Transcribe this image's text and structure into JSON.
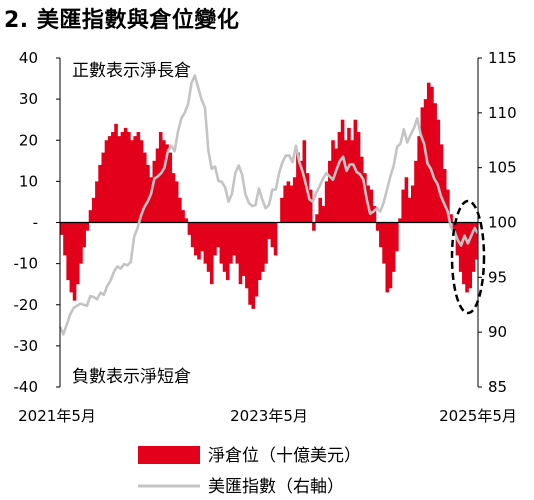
{
  "title": "2. 美匯指數與倉位變化",
  "chart_data": {
    "type": "bar+line",
    "left_axis": {
      "min": -40,
      "max": 40,
      "ticks": [
        "40",
        "30",
        "20",
        "10",
        "-",
        "-10",
        "-20",
        "-30",
        "-40"
      ]
    },
    "right_axis": {
      "min": 85,
      "max": 115,
      "ticks": [
        "115",
        "110",
        "105",
        "100",
        "95",
        "90",
        "85"
      ]
    },
    "x_ticks": [
      "2021年5月",
      "2023年5月",
      "2025年5月"
    ],
    "annotations": {
      "top": "正數表示淨長倉",
      "bottom": "負數表示淨短倉"
    },
    "legend": [
      {
        "label": "淨倉位（十億美元）",
        "color": "#e3001b",
        "kind": "bar"
      },
      {
        "label": "美匯指數（右軸）",
        "color": "#c4c4c4",
        "kind": "line"
      }
    ],
    "series": [
      {
        "name": "淨倉位（十億美元）",
        "axis": "left",
        "x_range": [
          "2021-05",
          "2025-05"
        ],
        "values": [
          -3,
          -8,
          -14,
          -17,
          -19,
          -15,
          -10,
          -6,
          -2,
          3,
          6,
          10,
          14,
          17,
          20,
          21,
          22,
          24,
          21,
          22,
          23,
          22,
          20,
          21,
          22,
          20,
          17,
          14,
          11,
          15,
          18,
          22,
          20,
          19,
          17,
          12,
          10,
          6,
          3,
          1,
          -3,
          -6,
          -8,
          -9,
          -7,
          -10,
          -12,
          -15,
          -8,
          -6,
          -10,
          -12,
          -14,
          -10,
          -8,
          -10,
          -15,
          -13,
          -16,
          -20,
          -21,
          -18,
          -14,
          -12,
          -10,
          -4,
          -6,
          -8,
          0,
          6,
          9,
          10,
          9,
          11,
          17,
          15,
          20,
          12,
          8,
          -2,
          2,
          6,
          4,
          10,
          15,
          20,
          18,
          22,
          25,
          20,
          23,
          20,
          25,
          22,
          16,
          12,
          9,
          8,
          4,
          -2,
          -6,
          -10,
          -17,
          -16,
          -12,
          -7,
          1,
          8,
          11,
          6,
          9,
          15,
          21,
          28,
          30,
          34,
          33,
          29,
          25,
          19,
          13,
          8,
          2,
          -3,
          -8,
          -12,
          -15,
          -17,
          -16,
          -12,
          -9
        ]
      },
      {
        "name": "美匯指數（右軸）",
        "axis": "right",
        "x_range": [
          "2021-05",
          "2025-05"
        ],
        "values": [
          90.5,
          89.8,
          90.7,
          91.6,
          92.2,
          92.4,
          92.6,
          92.5,
          92.4,
          93.3,
          93.2,
          93.0,
          93.6,
          93.4,
          94.2,
          94.7,
          95.5,
          96.0,
          95.8,
          96.2,
          96.1,
          96.4,
          98.7,
          99.5,
          100.6,
          101.4,
          101.9,
          102.6,
          104.0,
          104.2,
          104.5,
          105.0,
          106.5,
          107.0,
          106.5,
          108.3,
          109.5,
          110.0,
          110.8,
          112.7,
          113.4,
          112.3,
          111.2,
          110.5,
          106.6,
          104.9,
          105.1,
          103.8,
          103.7,
          103.2,
          101.9,
          102.6,
          104.5,
          105.2,
          104.4,
          102.6,
          101.8,
          101.5,
          101.6,
          103.1,
          102.1,
          101.3,
          101.6,
          103.0,
          103.0,
          104.5,
          105.5,
          106.1,
          106.1,
          105.5,
          107.0,
          105.5,
          104.6,
          103.4,
          102.1,
          101.9,
          102.7,
          103.3,
          104.0,
          104.5,
          104.2,
          103.9,
          104.8,
          105.6,
          106.0,
          104.7,
          105.3,
          105.3,
          104.6,
          104.4,
          103.9,
          102.1,
          100.8,
          101.0,
          101.3,
          101.0,
          101.8,
          103.0,
          104.2,
          105.2,
          106.9,
          107.2,
          108.5,
          107.3,
          108.0,
          108.6,
          109.5,
          108.0,
          107.2,
          105.4,
          104.9,
          104.0,
          103.5,
          102.4,
          101.7,
          101.0,
          99.5,
          99.2,
          98.4,
          97.9,
          98.8,
          98.1,
          98.8,
          99.5,
          99.0
        ]
      }
    ]
  }
}
